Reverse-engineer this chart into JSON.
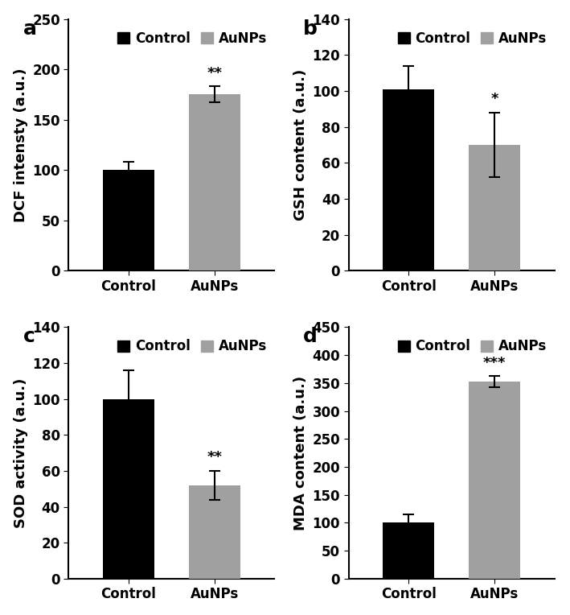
{
  "subplots": [
    {
      "label": "a",
      "ylabel": "DCF intensty (a.u.)",
      "categories": [
        "Control",
        "AuNPs"
      ],
      "values": [
        100,
        175
      ],
      "errors": [
        8,
        8
      ],
      "colors": [
        "#000000",
        "#a0a0a0"
      ],
      "ylim": [
        0,
        250
      ],
      "yticks": [
        0,
        50,
        100,
        150,
        200,
        250
      ],
      "significance": {
        "bar_index": 1,
        "text": "**"
      }
    },
    {
      "label": "b",
      "ylabel": "GSH content (a.u.)",
      "categories": [
        "Control",
        "AuNPs"
      ],
      "values": [
        101,
        70
      ],
      "errors": [
        13,
        18
      ],
      "colors": [
        "#000000",
        "#a0a0a0"
      ],
      "ylim": [
        0,
        140
      ],
      "yticks": [
        0,
        20,
        40,
        60,
        80,
        100,
        120,
        140
      ],
      "significance": {
        "bar_index": 1,
        "text": "*"
      }
    },
    {
      "label": "c",
      "ylabel": "SOD activity (a.u.)",
      "categories": [
        "Control",
        "AuNPs"
      ],
      "values": [
        100,
        52
      ],
      "errors": [
        16,
        8
      ],
      "colors": [
        "#000000",
        "#a0a0a0"
      ],
      "ylim": [
        0,
        140
      ],
      "yticks": [
        0,
        20,
        40,
        60,
        80,
        100,
        120,
        140
      ],
      "significance": {
        "bar_index": 1,
        "text": "**"
      }
    },
    {
      "label": "d",
      "ylabel": "MDA content (a.u.)",
      "categories": [
        "Control",
        "AuNPs"
      ],
      "values": [
        100,
        352
      ],
      "errors": [
        15,
        10
      ],
      "colors": [
        "#000000",
        "#a0a0a0"
      ],
      "ylim": [
        0,
        450
      ],
      "yticks": [
        0,
        50,
        100,
        150,
        200,
        250,
        300,
        350,
        400,
        450
      ],
      "significance": {
        "bar_index": 1,
        "text": "***"
      }
    }
  ],
  "legend_labels": [
    "Control",
    "AuNPs"
  ],
  "legend_colors": [
    "#000000",
    "#a0a0a0"
  ],
  "bar_width": 0.6,
  "label_fontsize": 13,
  "tick_fontsize": 12,
  "legend_fontsize": 12,
  "sig_fontsize": 13,
  "panel_label_fontsize": 18
}
